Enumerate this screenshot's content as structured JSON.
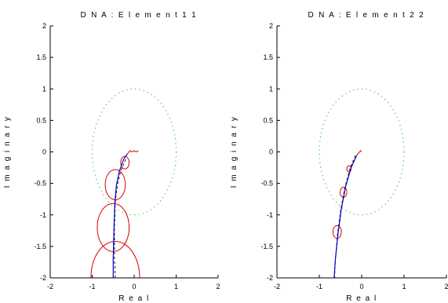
{
  "chart_data": [
    {
      "type": "line",
      "title": "D N A : E l e m e n t  1 1",
      "xlabel": "R e a l",
      "ylabel": "I m a g i n a r y",
      "xlim": [
        -2,
        2
      ],
      "ylim": [
        -2,
        2
      ],
      "xticks": [
        "-2",
        "-1",
        "0",
        "1",
        "2"
      ],
      "yticks": [
        "2",
        "1.5",
        "1",
        "0.5",
        "0",
        "-0.5",
        "-1",
        "-1.5",
        "-2"
      ],
      "grid": false,
      "colors": {
        "unit_circle": "#33cc33",
        "nyquist": "#0000cc",
        "dashed": "#000000",
        "disks": "#dd0000",
        "low_freq": "#dd0000"
      },
      "unit_circle": {
        "center": [
          0,
          0
        ],
        "radius": 1
      },
      "low_freq_curve": [
        [
          0.1,
          0.02
        ],
        [
          0.05,
          0.0
        ],
        [
          0.0,
          0.02
        ],
        [
          -0.05,
          0.0
        ],
        [
          -0.1,
          0.02
        ],
        [
          -0.16,
          -0.03
        ]
      ],
      "nyquist_curve": [
        [
          -0.16,
          -0.03
        ],
        [
          -0.25,
          -0.12
        ],
        [
          -0.35,
          -0.3
        ],
        [
          -0.42,
          -0.52
        ],
        [
          -0.46,
          -0.8
        ],
        [
          -0.48,
          -1.2
        ],
        [
          -0.5,
          -1.7
        ],
        [
          -0.5,
          -2.0
        ]
      ],
      "dashed_curve": [
        [
          -0.2,
          -0.12
        ],
        [
          -0.32,
          -0.3
        ],
        [
          -0.4,
          -0.52
        ],
        [
          -0.45,
          -0.8
        ],
        [
          -0.47,
          -1.2
        ],
        [
          -0.47,
          -1.7
        ],
        [
          -0.45,
          -2.0
        ]
      ],
      "uncertainty_disks": [
        {
          "center": [
            -0.22,
            -0.17
          ],
          "radius": 0.1
        },
        {
          "center": [
            -0.45,
            -0.52
          ],
          "radius": 0.24
        },
        {
          "center": [
            -0.5,
            -1.2
          ],
          "radius": 0.38
        },
        {
          "center": [
            -0.45,
            -2.0
          ],
          "radius": 0.58
        }
      ]
    },
    {
      "type": "line",
      "title": "D N A : E l e m e n t  2 2",
      "xlabel": "R e a l",
      "ylabel": "I m a g i n a r y",
      "xlim": [
        -2,
        2
      ],
      "ylim": [
        -2,
        2
      ],
      "xticks": [
        "-2",
        "-1",
        "0",
        "1",
        "2"
      ],
      "yticks": [
        "2",
        "1.5",
        "1",
        "0.5",
        "0",
        "-0.5",
        "-1",
        "-1.5",
        "-2"
      ],
      "grid": false,
      "colors": {
        "unit_circle": "#33cc33",
        "nyquist": "#0000cc",
        "dashed": "#000000",
        "disks": "#dd0000",
        "low_freq": "#dd0000"
      },
      "unit_circle": {
        "center": [
          0,
          0
        ],
        "radius": 1
      },
      "low_freq_curve": [
        [
          0.0,
          0.0
        ],
        [
          -0.03,
          0.02
        ],
        [
          -0.06,
          -0.01
        ],
        [
          -0.1,
          -0.04
        ],
        [
          -0.12,
          -0.06
        ]
      ],
      "nyquist_curve": [
        [
          -0.12,
          -0.06
        ],
        [
          -0.25,
          -0.25
        ],
        [
          -0.38,
          -0.55
        ],
        [
          -0.48,
          -0.9
        ],
        [
          -0.56,
          -1.3
        ],
        [
          -0.62,
          -1.7
        ],
        [
          -0.65,
          -2.0
        ]
      ],
      "dashed_curve": [
        [
          -0.15,
          -0.06
        ],
        [
          -0.27,
          -0.25
        ],
        [
          -0.39,
          -0.55
        ],
        [
          -0.49,
          -0.9
        ],
        [
          -0.57,
          -1.3
        ],
        [
          -0.62,
          -1.7
        ],
        [
          -0.64,
          -2.0
        ]
      ],
      "uncertainty_disks": [
        {
          "center": [
            -0.3,
            -0.27
          ],
          "radius": 0.05
        },
        {
          "center": [
            -0.43,
            -0.64
          ],
          "radius": 0.08
        },
        {
          "center": [
            -0.58,
            -1.27
          ],
          "radius": 0.1
        }
      ]
    }
  ]
}
